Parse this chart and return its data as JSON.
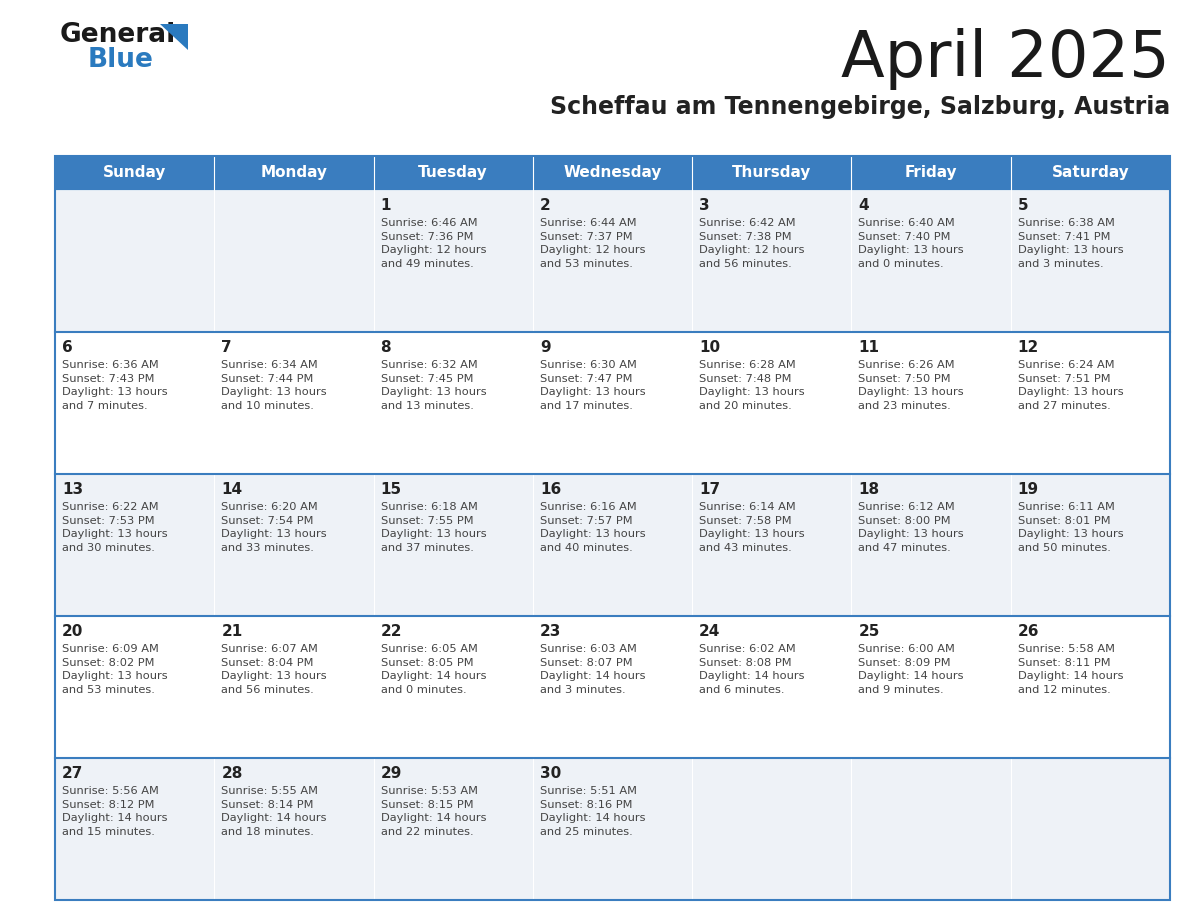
{
  "title": "April 2025",
  "subtitle": "Scheffau am Tennengebirge, Salzburg, Austria",
  "days_of_week": [
    "Sunday",
    "Monday",
    "Tuesday",
    "Wednesday",
    "Thursday",
    "Friday",
    "Saturday"
  ],
  "header_bg": "#3a7dbf",
  "header_text": "#ffffff",
  "row_bg_even": "#eef2f7",
  "row_bg_odd": "#ffffff",
  "cell_border_color": "#3a7dbf",
  "day_num_color": "#222222",
  "text_color": "#444444",
  "title_color": "#1a1a1a",
  "subtitle_color": "#222222",
  "logo_general_color": "#1a1a1a",
  "logo_blue_color": "#2a7abf",
  "logo_triangle_color": "#2a7abf",
  "calendar": [
    [
      {
        "day": null,
        "sunrise": null,
        "sunset": null,
        "daylight": null
      },
      {
        "day": null,
        "sunrise": null,
        "sunset": null,
        "daylight": null
      },
      {
        "day": 1,
        "sunrise": "6:46 AM",
        "sunset": "7:36 PM",
        "daylight": "12 hours and 49 minutes."
      },
      {
        "day": 2,
        "sunrise": "6:44 AM",
        "sunset": "7:37 PM",
        "daylight": "12 hours and 53 minutes."
      },
      {
        "day": 3,
        "sunrise": "6:42 AM",
        "sunset": "7:38 PM",
        "daylight": "12 hours and 56 minutes."
      },
      {
        "day": 4,
        "sunrise": "6:40 AM",
        "sunset": "7:40 PM",
        "daylight": "13 hours and 0 minutes."
      },
      {
        "day": 5,
        "sunrise": "6:38 AM",
        "sunset": "7:41 PM",
        "daylight": "13 hours and 3 minutes."
      }
    ],
    [
      {
        "day": 6,
        "sunrise": "6:36 AM",
        "sunset": "7:43 PM",
        "daylight": "13 hours and 7 minutes."
      },
      {
        "day": 7,
        "sunrise": "6:34 AM",
        "sunset": "7:44 PM",
        "daylight": "13 hours and 10 minutes."
      },
      {
        "day": 8,
        "sunrise": "6:32 AM",
        "sunset": "7:45 PM",
        "daylight": "13 hours and 13 minutes."
      },
      {
        "day": 9,
        "sunrise": "6:30 AM",
        "sunset": "7:47 PM",
        "daylight": "13 hours and 17 minutes."
      },
      {
        "day": 10,
        "sunrise": "6:28 AM",
        "sunset": "7:48 PM",
        "daylight": "13 hours and 20 minutes."
      },
      {
        "day": 11,
        "sunrise": "6:26 AM",
        "sunset": "7:50 PM",
        "daylight": "13 hours and 23 minutes."
      },
      {
        "day": 12,
        "sunrise": "6:24 AM",
        "sunset": "7:51 PM",
        "daylight": "13 hours and 27 minutes."
      }
    ],
    [
      {
        "day": 13,
        "sunrise": "6:22 AM",
        "sunset": "7:53 PM",
        "daylight": "13 hours and 30 minutes."
      },
      {
        "day": 14,
        "sunrise": "6:20 AM",
        "sunset": "7:54 PM",
        "daylight": "13 hours and 33 minutes."
      },
      {
        "day": 15,
        "sunrise": "6:18 AM",
        "sunset": "7:55 PM",
        "daylight": "13 hours and 37 minutes."
      },
      {
        "day": 16,
        "sunrise": "6:16 AM",
        "sunset": "7:57 PM",
        "daylight": "13 hours and 40 minutes."
      },
      {
        "day": 17,
        "sunrise": "6:14 AM",
        "sunset": "7:58 PM",
        "daylight": "13 hours and 43 minutes."
      },
      {
        "day": 18,
        "sunrise": "6:12 AM",
        "sunset": "8:00 PM",
        "daylight": "13 hours and 47 minutes."
      },
      {
        "day": 19,
        "sunrise": "6:11 AM",
        "sunset": "8:01 PM",
        "daylight": "13 hours and 50 minutes."
      }
    ],
    [
      {
        "day": 20,
        "sunrise": "6:09 AM",
        "sunset": "8:02 PM",
        "daylight": "13 hours and 53 minutes."
      },
      {
        "day": 21,
        "sunrise": "6:07 AM",
        "sunset": "8:04 PM",
        "daylight": "13 hours and 56 minutes."
      },
      {
        "day": 22,
        "sunrise": "6:05 AM",
        "sunset": "8:05 PM",
        "daylight": "14 hours and 0 minutes."
      },
      {
        "day": 23,
        "sunrise": "6:03 AM",
        "sunset": "8:07 PM",
        "daylight": "14 hours and 3 minutes."
      },
      {
        "day": 24,
        "sunrise": "6:02 AM",
        "sunset": "8:08 PM",
        "daylight": "14 hours and 6 minutes."
      },
      {
        "day": 25,
        "sunrise": "6:00 AM",
        "sunset": "8:09 PM",
        "daylight": "14 hours and 9 minutes."
      },
      {
        "day": 26,
        "sunrise": "5:58 AM",
        "sunset": "8:11 PM",
        "daylight": "14 hours and 12 minutes."
      }
    ],
    [
      {
        "day": 27,
        "sunrise": "5:56 AM",
        "sunset": "8:12 PM",
        "daylight": "14 hours and 15 minutes."
      },
      {
        "day": 28,
        "sunrise": "5:55 AM",
        "sunset": "8:14 PM",
        "daylight": "14 hours and 18 minutes."
      },
      {
        "day": 29,
        "sunrise": "5:53 AM",
        "sunset": "8:15 PM",
        "daylight": "14 hours and 22 minutes."
      },
      {
        "day": 30,
        "sunrise": "5:51 AM",
        "sunset": "8:16 PM",
        "daylight": "14 hours and 25 minutes."
      },
      {
        "day": null,
        "sunrise": null,
        "sunset": null,
        "daylight": null
      },
      {
        "day": null,
        "sunrise": null,
        "sunset": null,
        "daylight": null
      },
      {
        "day": null,
        "sunrise": null,
        "sunset": null,
        "daylight": null
      }
    ]
  ],
  "fig_width": 11.88,
  "fig_height": 9.18,
  "dpi": 100
}
